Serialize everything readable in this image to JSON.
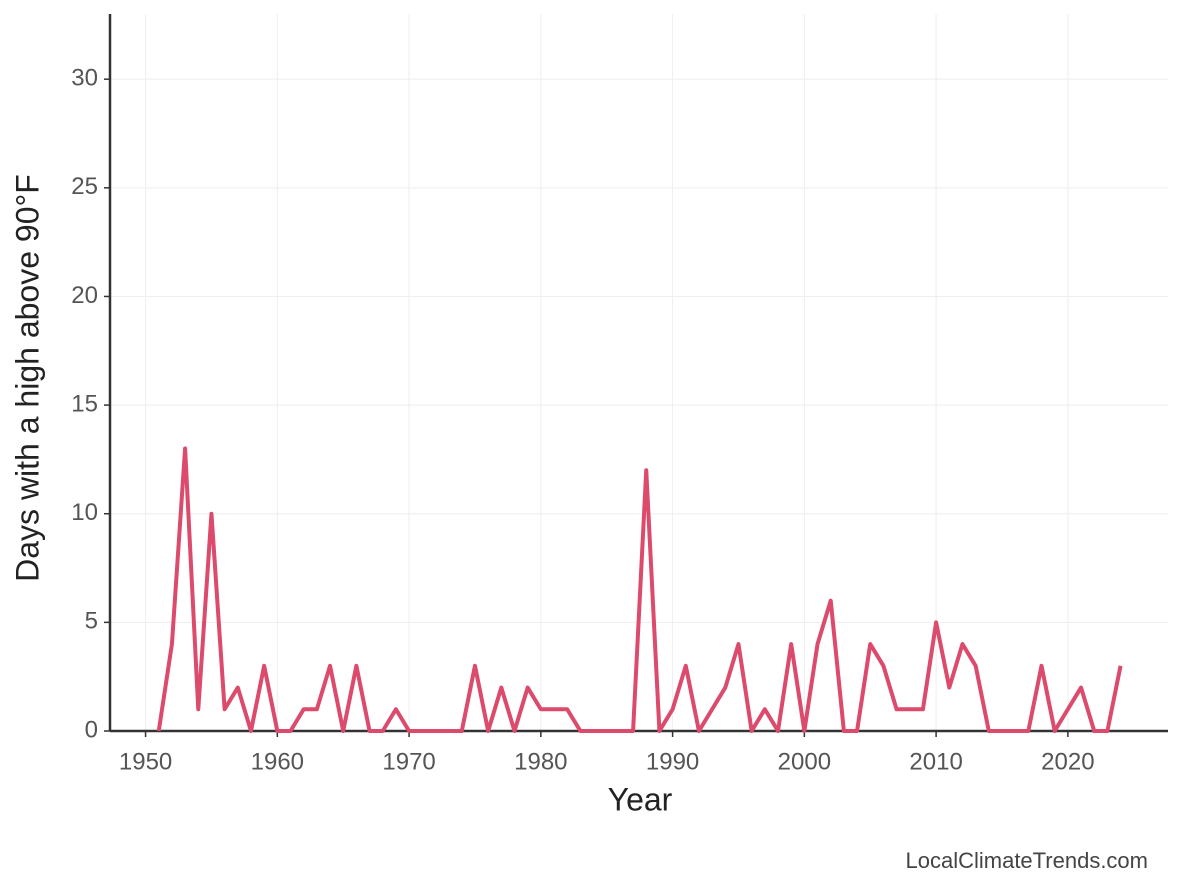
{
  "chart_data": {
    "type": "line",
    "x_label": "Year",
    "y_label": "Days with a high above 90°F",
    "source": "LocalClimateTrends.com",
    "x": [
      1951,
      1952,
      1953,
      1954,
      1955,
      1956,
      1957,
      1958,
      1959,
      1960,
      1961,
      1962,
      1963,
      1964,
      1965,
      1966,
      1967,
      1968,
      1969,
      1970,
      1971,
      1972,
      1973,
      1974,
      1975,
      1976,
      1977,
      1978,
      1979,
      1980,
      1981,
      1982,
      1983,
      1984,
      1985,
      1986,
      1987,
      1988,
      1989,
      1990,
      1991,
      1992,
      1993,
      1994,
      1995,
      1996,
      1997,
      1998,
      1999,
      2000,
      2001,
      2002,
      2003,
      2004,
      2005,
      2006,
      2007,
      2008,
      2009,
      2010,
      2011,
      2012,
      2013,
      2014,
      2015,
      2016,
      2017,
      2018,
      2019,
      2020,
      2021,
      2022,
      2023,
      2024
    ],
    "values": [
      0,
      4,
      13,
      1,
      10,
      1,
      2,
      0,
      3,
      0,
      0,
      1,
      1,
      3,
      0,
      3,
      0,
      0,
      1,
      0,
      0,
      0,
      0,
      0,
      3,
      0,
      2,
      0,
      2,
      1,
      1,
      1,
      0,
      0,
      0,
      0,
      0,
      12,
      0,
      1,
      3,
      0,
      1,
      2,
      4,
      0,
      1,
      0,
      4,
      0,
      4,
      6,
      0,
      0,
      4,
      3,
      1,
      1,
      1,
      5,
      2,
      4,
      3,
      0,
      0,
      0,
      0,
      3,
      0,
      1,
      2,
      0,
      0,
      3
    ],
    "color": "#dc4a6c",
    "xlim": [
      1947.3,
      2027.6
    ],
    "xticks": [
      1950,
      1960,
      1970,
      1980,
      1990,
      2000,
      2010,
      2020
    ],
    "ylim": [
      0,
      33
    ],
    "yticks": [
      0,
      5,
      10,
      15,
      20,
      25,
      30
    ],
    "grid": true
  }
}
